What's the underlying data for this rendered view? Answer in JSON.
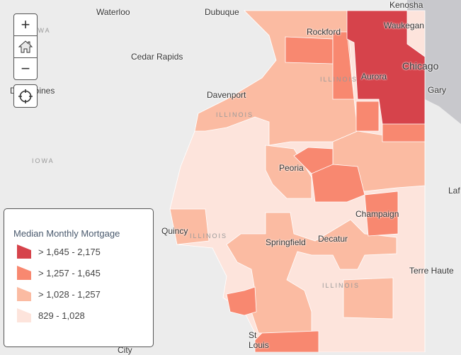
{
  "map": {
    "cities": [
      {
        "name": "Waterloo"
      },
      {
        "name": "Dubuque"
      },
      {
        "name": "Kenosha"
      },
      {
        "name": "Rockford"
      },
      {
        "name": "Waukegan"
      },
      {
        "name": "Cedar Rapids"
      },
      {
        "name": "Chicago"
      },
      {
        "name": "Aurora"
      },
      {
        "name": "Des Moines"
      },
      {
        "name": "Davenport"
      },
      {
        "name": "Gary"
      },
      {
        "name": "Peoria"
      },
      {
        "name": "Champaign"
      },
      {
        "name": "Quincy"
      },
      {
        "name": "Springfield"
      },
      {
        "name": "Decatur"
      },
      {
        "name": "Terre Haute"
      },
      {
        "name": "St Louis"
      },
      {
        "name": "Laf"
      },
      {
        "name": "City"
      }
    ],
    "state_labels": [
      "IOWA",
      "ILLINOIS",
      "ILLINOIS",
      "ILLINOIS",
      "ILLINOIS",
      "IOWA"
    ]
  },
  "controls": {
    "zoom_in": "+",
    "zoom_out": "−"
  },
  "legend": {
    "title": "Median Monthly Mortgage",
    "classes": [
      {
        "label": "> 1,645 - 2,175",
        "color": "#d6434b"
      },
      {
        "label": "> 1,257 - 1,645",
        "color": "#f88870"
      },
      {
        "label": "> 1,028 - 1,257",
        "color": "#fbbba2"
      },
      {
        "label": "829 - 1,028",
        "color": "#fde4dc"
      }
    ]
  }
}
